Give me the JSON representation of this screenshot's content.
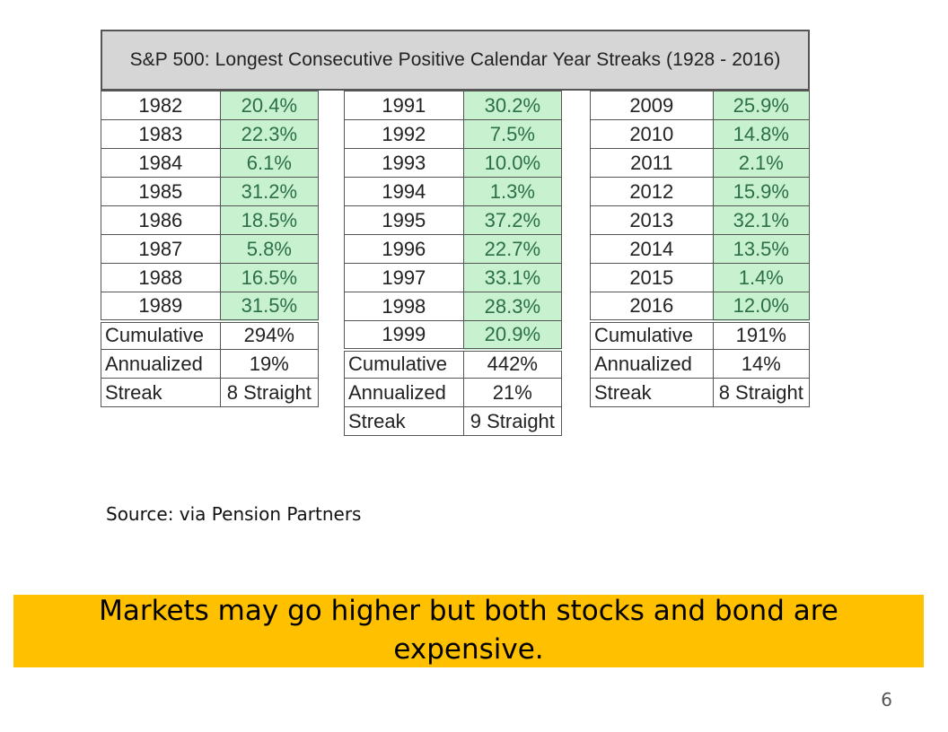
{
  "title": "S&P 500: Longest Consecutive Positive Calendar Year Streaks (1928 - 2016)",
  "streaks": [
    {
      "rows": [
        [
          "1982",
          "20.4%"
        ],
        [
          "1983",
          "22.3%"
        ],
        [
          "1984",
          "6.1%"
        ],
        [
          "1985",
          "31.2%"
        ],
        [
          "1986",
          "18.5%"
        ],
        [
          "1987",
          "5.8%"
        ],
        [
          "1988",
          "16.5%"
        ],
        [
          "1989",
          "31.5%"
        ]
      ],
      "summary": [
        [
          "Cumulative",
          "294%"
        ],
        [
          "Annualized",
          "19%"
        ],
        [
          "Streak",
          "8 Straight"
        ]
      ]
    },
    {
      "rows": [
        [
          "1991",
          "30.2%"
        ],
        [
          "1992",
          "7.5%"
        ],
        [
          "1993",
          "10.0%"
        ],
        [
          "1994",
          "1.3%"
        ],
        [
          "1995",
          "37.2%"
        ],
        [
          "1996",
          "22.7%"
        ],
        [
          "1997",
          "33.1%"
        ],
        [
          "1998",
          "28.3%"
        ],
        [
          "1999",
          "20.9%"
        ]
      ],
      "summary": [
        [
          "Cumulative",
          "442%"
        ],
        [
          "Annualized",
          "21%"
        ],
        [
          "Streak",
          "9 Straight"
        ]
      ]
    },
    {
      "rows": [
        [
          "2009",
          "25.9%"
        ],
        [
          "2010",
          "14.8%"
        ],
        [
          "2011",
          "2.1%"
        ],
        [
          "2012",
          "15.9%"
        ],
        [
          "2013",
          "32.1%"
        ],
        [
          "2014",
          "13.5%"
        ],
        [
          "2015",
          "1.4%"
        ],
        [
          "2016",
          "12.0%"
        ]
      ],
      "summary": [
        [
          "Cumulative",
          "191%"
        ],
        [
          "Annualized",
          "14%"
        ],
        [
          "Streak",
          "8 Straight"
        ]
      ]
    }
  ],
  "source": "Source: via Pension Partners",
  "banner": {
    "line1": "Markets may go higher but both stocks and bond are",
    "line2": "expensive."
  },
  "page_number": "6",
  "colors": {
    "return_cell_bg": "#c8f2cf",
    "return_text": "#2c6e4a",
    "title_bg": "#d6d6d6",
    "banner_bg": "#ffc000"
  }
}
